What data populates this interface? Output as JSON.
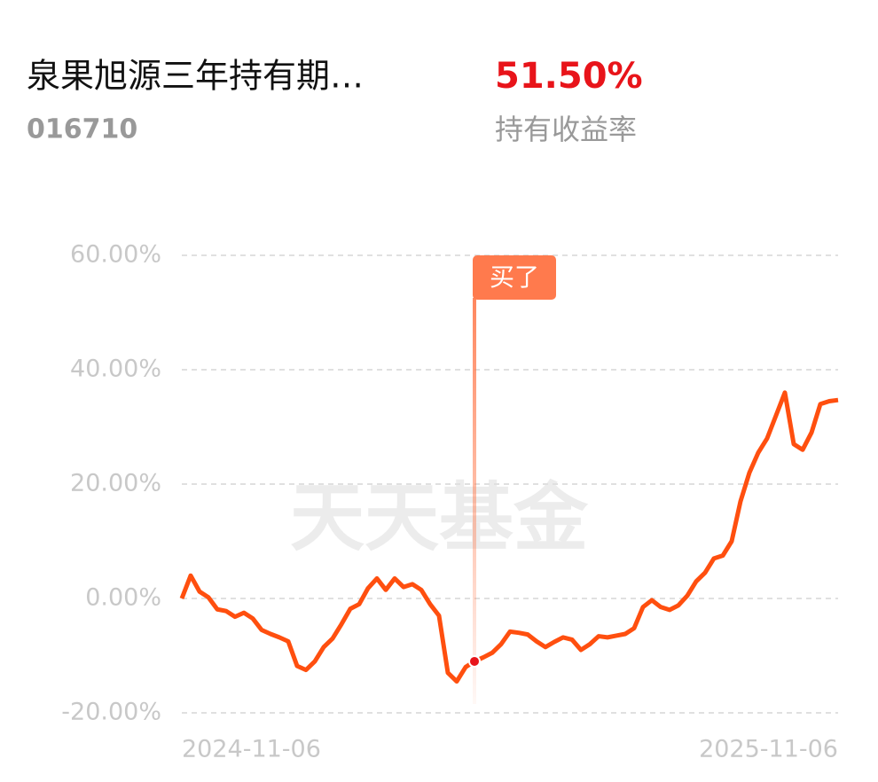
{
  "header": {
    "fund_name": "泉果旭源三年持有期…",
    "fund_code": "016710",
    "return_value": "51.50%",
    "return_label": "持有收益率"
  },
  "chart_data": {
    "type": "line",
    "watermark": "天天基金",
    "categories": [
      "2024-11-06",
      null,
      null,
      null,
      null,
      null,
      null,
      null,
      null,
      null,
      null,
      null,
      null,
      null,
      null,
      null,
      null,
      null,
      null,
      null,
      null,
      null,
      null,
      null,
      null,
      null,
      null,
      null,
      null,
      null,
      null,
      null,
      null,
      null,
      null,
      null,
      null,
      null,
      null,
      null,
      null,
      null,
      null,
      null,
      null,
      null,
      null,
      null,
      null,
      null,
      null,
      null,
      null,
      null,
      null,
      null,
      null,
      null,
      null,
      null,
      null,
      null,
      null,
      null,
      null,
      null,
      null,
      null,
      null,
      null,
      null,
      null,
      null,
      null,
      "2025-11-06"
    ],
    "series": [
      {
        "name": "持有收益率",
        "color": "#ff4f0f",
        "values": [
          0,
          4,
          1.2,
          0.2,
          -1.9,
          -2.2,
          -3.2,
          -2.5,
          -3.5,
          -5.5,
          -6.2,
          -6.8,
          -7.5,
          -11.8,
          -12.5,
          -11,
          -8.5,
          -7,
          -4.5,
          -1.8,
          -1,
          1.8,
          3.5,
          1.5,
          3.5,
          2,
          2.5,
          1.5,
          -1,
          -3,
          -13,
          -14.5,
          -12,
          -11,
          -10.3,
          -9.5,
          -8,
          -5.8,
          -6,
          -6.3,
          -7.5,
          -8.5,
          -7.6,
          -6.8,
          -7.2,
          -9,
          -8,
          -6.6,
          -6.8,
          -6.5,
          -6.2,
          -5.2,
          -1.5,
          -0.3,
          -1.5,
          -2,
          -1.2,
          0.5,
          3,
          4.5,
          7,
          7.5,
          10,
          17,
          22,
          25.5,
          28,
          32,
          36,
          27,
          26,
          29,
          34,
          34.5,
          34.7
        ]
      }
    ],
    "annotations": [
      {
        "text": "买了",
        "index": 33
      }
    ],
    "ylim": [
      -20,
      60
    ],
    "yticks": [
      {
        "value": -20,
        "label": "-20.00%"
      },
      {
        "value": 0,
        "label": "0.00%"
      },
      {
        "value": 20,
        "label": "20.00%"
      },
      {
        "value": 40,
        "label": "40.00%"
      },
      {
        "value": 60,
        "label": "60.00%"
      }
    ],
    "grid": true
  }
}
